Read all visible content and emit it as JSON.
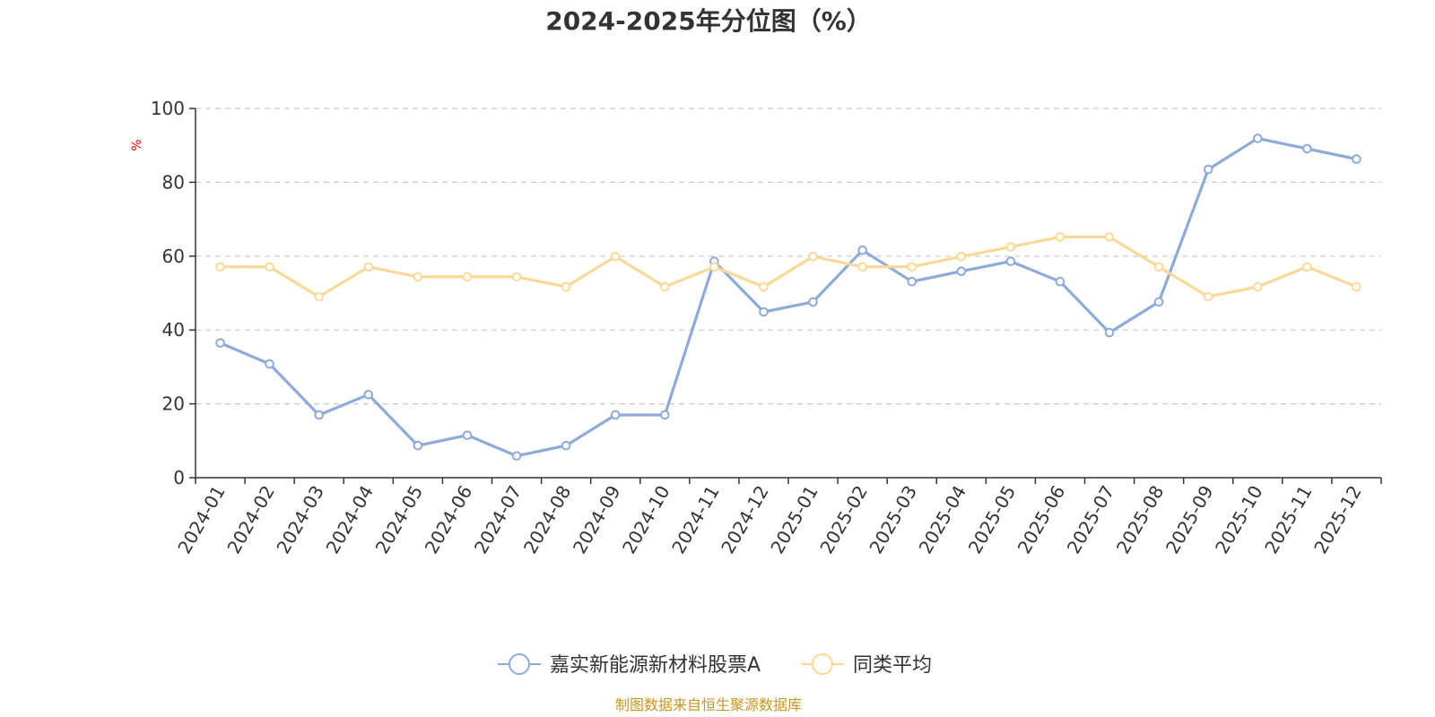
{
  "chart_data": {
    "type": "line",
    "title": "2024-2025年分位图（%）",
    "ylabel": "%",
    "xlabel": "",
    "ylim": [
      0,
      100
    ],
    "yticks": [
      0,
      20,
      40,
      60,
      80,
      100
    ],
    "grid": true,
    "legend_position": "bottom-center",
    "categories": [
      "2024-01",
      "2024-02",
      "2024-03",
      "2024-04",
      "2024-05",
      "2024-06",
      "2024-07",
      "2024-08",
      "2024-09",
      "2024-10",
      "2024-11",
      "2024-12",
      "2025-01",
      "2025-02",
      "2025-03",
      "2025-04",
      "2025-05",
      "2025-06",
      "2025-07",
      "2025-08",
      "2025-09",
      "2025-10",
      "2025-11",
      "2025-12"
    ],
    "series": [
      {
        "name": "嘉实新能源新材料股票A",
        "color": "#8eaad8",
        "values": [
          36.5,
          30.8,
          17.0,
          22.5,
          8.7,
          11.5,
          5.9,
          8.7,
          17.0,
          17.0,
          58.6,
          44.9,
          47.6,
          61.6,
          53.1,
          55.9,
          58.6,
          53.1,
          39.3,
          47.6,
          83.5,
          91.9,
          89.1,
          86.3
        ]
      },
      {
        "name": "同类平均",
        "color": "#fad997",
        "values": [
          57.1,
          57.1,
          49.0,
          57.1,
          54.4,
          54.4,
          54.4,
          51.7,
          59.9,
          51.7,
          57.1,
          51.7,
          59.9,
          57.1,
          57.1,
          59.9,
          62.5,
          65.2,
          65.2,
          57.1,
          49.0,
          51.7,
          57.1,
          51.7
        ]
      }
    ]
  },
  "footer": {
    "source": "制图数据来自恒生聚源数据库"
  }
}
